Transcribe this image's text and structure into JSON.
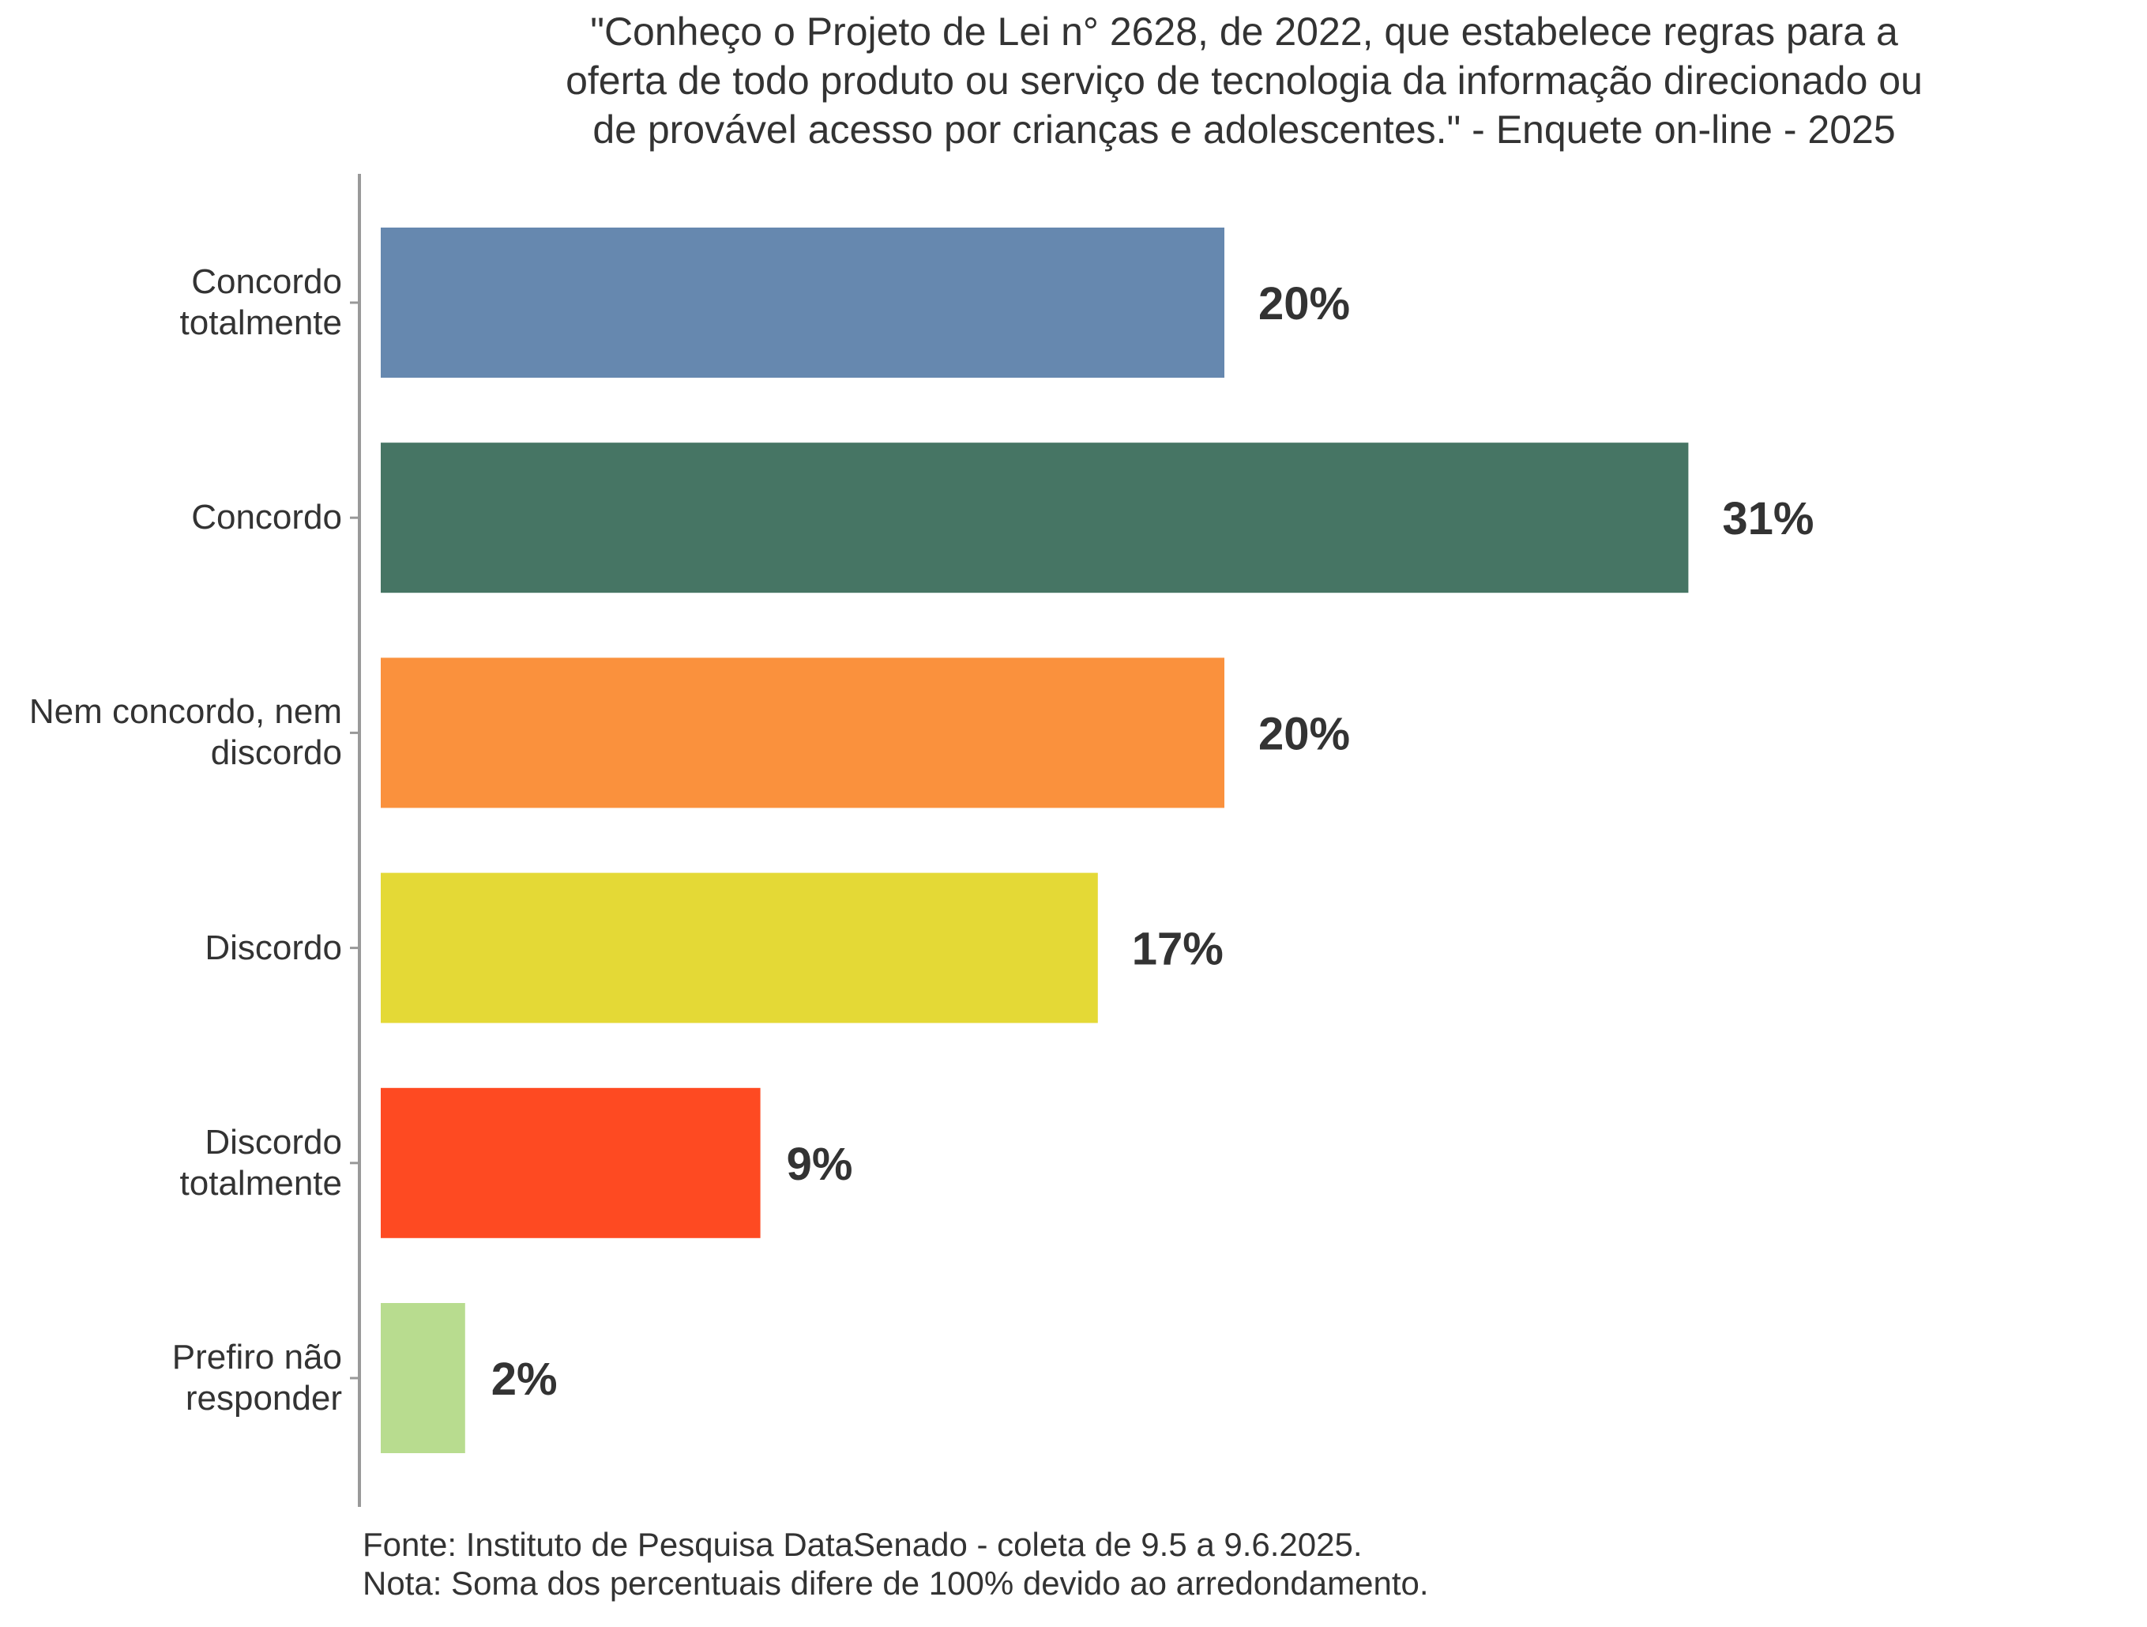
{
  "chart_data": {
    "type": "bar",
    "orientation": "horizontal",
    "title_lines": [
      "\"Conheço o Projeto de Lei n° 2628, de 2022, que estabelece regras para a",
      "oferta de todo produto ou serviço de tecnologia da informação direcionado ou",
      "de provável acesso por crianças e adolescentes.\" - Enquete on-line - 2025"
    ],
    "categories": [
      "Concordo totalmente",
      "Concordo",
      "Nem concordo, nem discordo",
      "Discordo",
      "Discordo totalmente",
      "Prefiro não responder"
    ],
    "values": [
      20,
      31,
      20,
      17,
      9,
      2
    ],
    "value_labels": [
      "20%",
      "31%",
      "20%",
      "17%",
      "9%",
      "2%"
    ],
    "colors": [
      "#6688AF",
      "#467564",
      "#FA913D",
      "#E4D936",
      "#FE4A22",
      "#B8DC8F"
    ],
    "unit": "%",
    "xlabel": "",
    "ylabel": "",
    "xlim": [
      0,
      100
    ],
    "grid": false,
    "legend": "none"
  },
  "footer": {
    "source": "Fonte: Instituto de Pesquisa DataSenado - coleta de 9.5 a 9.6.2025.",
    "note": "Nota: Soma dos percentuais difere de 100% devido ao arredondamento."
  }
}
